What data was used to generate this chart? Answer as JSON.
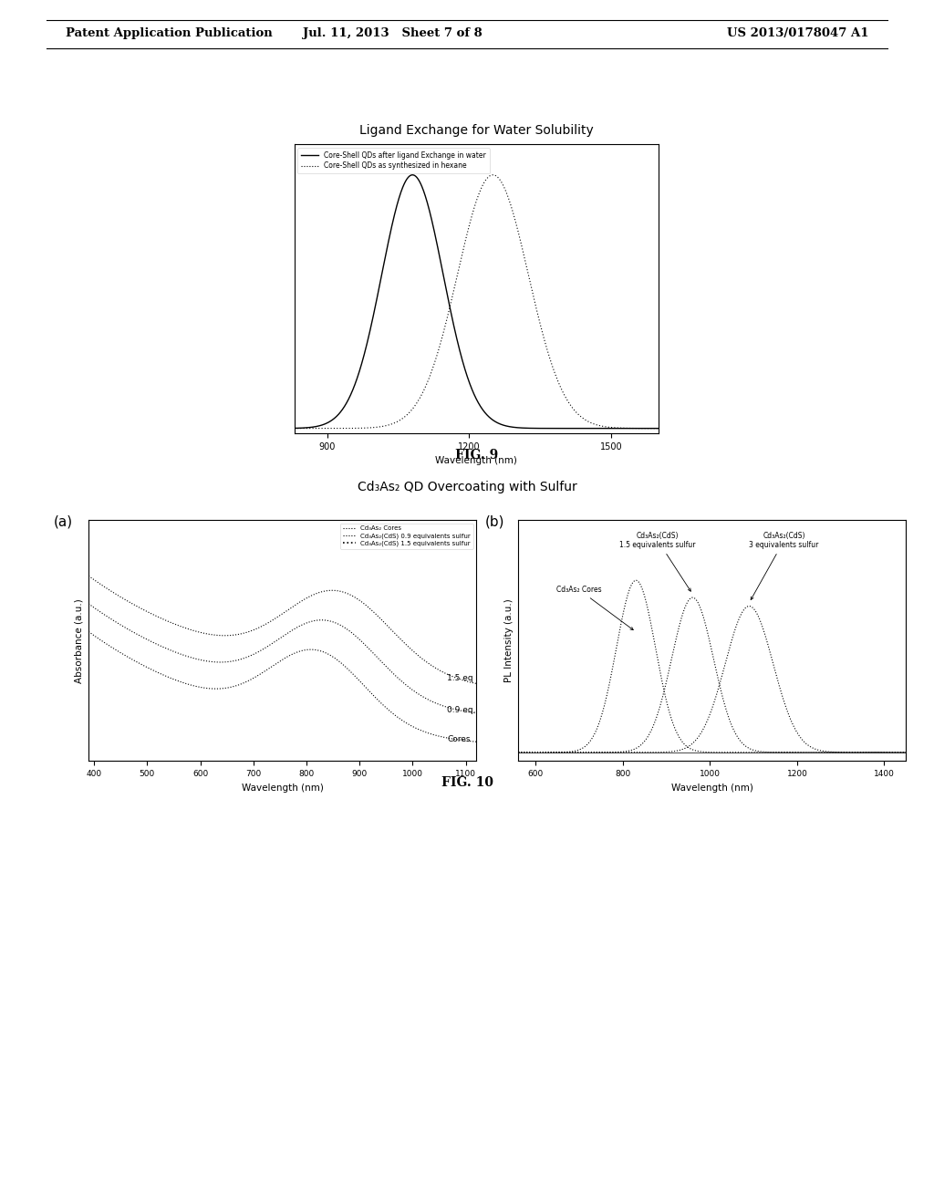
{
  "header_left": "Patent Application Publication",
  "header_mid": "Jul. 11, 2013   Sheet 7 of 8",
  "header_right": "US 2013/0178047 A1",
  "fig9_title": "Ligand Exchange for Water Solubility",
  "fig9_legend1": "Core-Shell QDs after ligand Exchange in water",
  "fig9_legend2": "Core-Shell QDs as synthesized in hexane",
  "fig9_xlabel": "Wavelength (nm)",
  "fig9_xticks": [
    900,
    1200,
    1500
  ],
  "fig9_peak1": 1080,
  "fig9_peak2": 1250,
  "fig9_sigma1": 65,
  "fig9_sigma2": 75,
  "fig9_caption": "FIG. 9",
  "fig10_title": "Cd₃As₂ QD Overcoating with Sulfur",
  "fig10_caption": "FIG. 10",
  "fig10a_xlabel": "Wavelength (nm)",
  "fig10a_ylabel": "Absorbance (a.u.)",
  "fig10a_xticks": [
    400,
    500,
    600,
    700,
    800,
    900,
    1000,
    1100
  ],
  "fig10a_legend1": "Cd₃As₂ Cores",
  "fig10a_legend2": "Cd₃As₂(CdS) 0.9 equivalents sulfur",
  "fig10a_legend3": "Cd₃As₂(CdS) 1.5 equivalents sulfur",
  "fig10a_label_cores": "Cores",
  "fig10a_label_09": "0.9 eq.",
  "fig10a_label_15": "1.5 eq",
  "fig10b_xlabel": "Wavelength (nm)",
  "fig10b_ylabel": "PL Intensity (a.u.)",
  "fig10b_xticks": [
    600,
    800,
    1000,
    1200,
    1400
  ],
  "fig10b_annot1": "Cd₃As₂ Cores",
  "fig10b_annot2": "Cd₃As₂(CdS)\n1.5 equivalents sulfur",
  "fig10b_annot3": "Cd₃As₂(CdS)\n3 equivalents sulfur",
  "fig10b_peak1": 830,
  "fig10b_peak2": 960,
  "fig10b_peak3": 1090,
  "fig10b_sigma1": 45,
  "fig10b_sigma2": 48,
  "fig10b_sigma3": 55,
  "background_color": "#ffffff",
  "text_color": "#000000"
}
